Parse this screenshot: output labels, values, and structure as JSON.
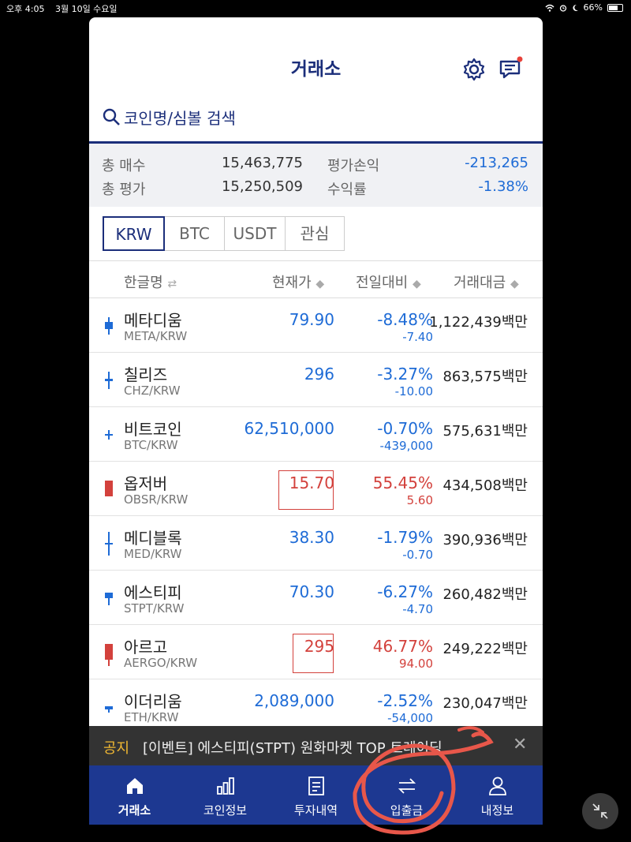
{
  "status": {
    "time": "오후 4:05",
    "date": "3월 10일 수요일",
    "battery": "66%",
    "battery_fraction": 0.66
  },
  "header": {
    "title": "거래소"
  },
  "search": {
    "placeholder": "코인명/심볼 검색"
  },
  "summary": {
    "total_buy_label": "총 매수",
    "total_buy": "15,463,775",
    "total_eval_label": "총 평가",
    "total_eval": "15,250,509",
    "pnl_label": "평가손익",
    "pnl": "-213,265",
    "rate_label": "수익률",
    "rate": "-1.38%"
  },
  "tabs": [
    "KRW",
    "BTC",
    "USDT",
    "관심"
  ],
  "columns": {
    "name": "한글명",
    "price": "현재가",
    "change": "전일대비",
    "volume": "거래대금"
  },
  "coins": [
    {
      "name": "메타디움",
      "symbol": "META/KRW",
      "price": "79.90",
      "pct": "-8.48%",
      "diff": "-7.40",
      "volume": "1,122,439백만",
      "dir": "down"
    },
    {
      "name": "칠리즈",
      "symbol": "CHZ/KRW",
      "price": "296",
      "pct": "-3.27%",
      "diff": "-10.00",
      "volume": "863,575백만",
      "dir": "down"
    },
    {
      "name": "비트코인",
      "symbol": "BTC/KRW",
      "price": "62,510,000",
      "pct": "-0.70%",
      "diff": "-439,000",
      "volume": "575,631백만",
      "dir": "down"
    },
    {
      "name": "옵저버",
      "symbol": "OBSR/KRW",
      "price": "15.70",
      "pct": "55.45%",
      "diff": "5.60",
      "volume": "434,508백만",
      "dir": "up"
    },
    {
      "name": "메디블록",
      "symbol": "MED/KRW",
      "price": "38.30",
      "pct": "-1.79%",
      "diff": "-0.70",
      "volume": "390,936백만",
      "dir": "down"
    },
    {
      "name": "에스티피",
      "symbol": "STPT/KRW",
      "price": "70.30",
      "pct": "-6.27%",
      "diff": "-4.70",
      "volume": "260,482백만",
      "dir": "down"
    },
    {
      "name": "아르고",
      "symbol": "AERGO/KRW",
      "price": "295",
      "pct": "46.77%",
      "diff": "94.00",
      "volume": "249,222백만",
      "dir": "up"
    },
    {
      "name": "이더리움",
      "symbol": "ETH/KRW",
      "price": "2,089,000",
      "pct": "-2.52%",
      "diff": "-54,000",
      "volume": "230,047백만",
      "dir": "down"
    }
  ],
  "notice": {
    "tag": "공지",
    "text": "[이벤트] 에스티피(STPT) 원화마켓 TOP 트레이딩…"
  },
  "nav": [
    "거래소",
    "코인정보",
    "투자내역",
    "입출금",
    "내정보"
  ],
  "colors": {
    "brand": "#1d3891",
    "up": "#d3413c",
    "down": "#1e6bd6",
    "annotation": "#e8574a"
  }
}
